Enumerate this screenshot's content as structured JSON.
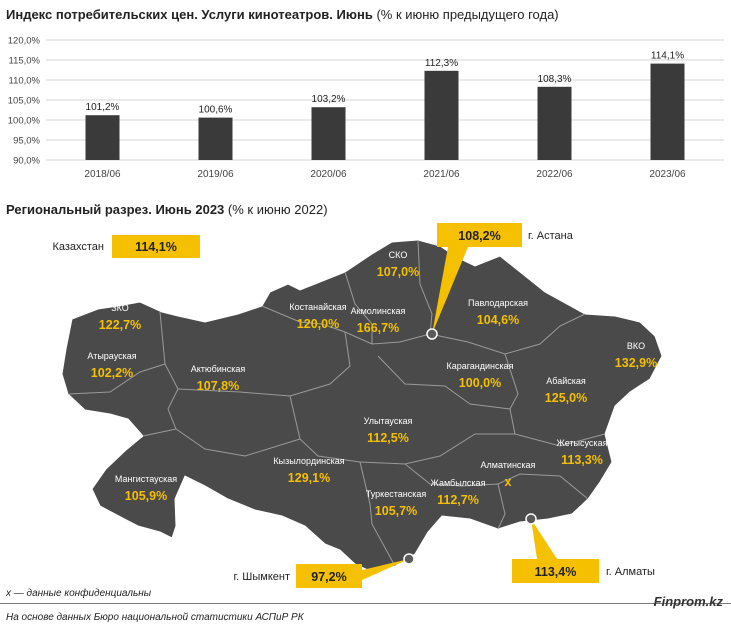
{
  "chart1": {
    "title_bold": "Индекс потребительских цен. Услуги кинотеатров. Июнь",
    "title_rest": "(% к июню предыдущего года)"
  },
  "chart_data": {
    "type": "bar",
    "categories": [
      "2018/06",
      "2019/06",
      "2020/06",
      "2021/06",
      "2022/06",
      "2023/06"
    ],
    "values": [
      101.2,
      100.6,
      103.2,
      112.3,
      108.3,
      114.1
    ],
    "value_labels": [
      "101,2%",
      "100,6%",
      "103,2%",
      "112,3%",
      "108,3%",
      "114,1%"
    ],
    "title": "Индекс потребительских цен. Услуги кинотеатров. Июнь (% к июню предыдущего года)",
    "ylim": [
      90,
      120
    ],
    "yticks": [
      "90,0%",
      "95,0%",
      "100,0%",
      "105,0%",
      "110,0%",
      "115,0%",
      "120,0%"
    ],
    "grid": true,
    "colors": {
      "bar": "#3a3a3a"
    }
  },
  "map": {
    "title_bold": "Региональный разрез. Июнь 2023",
    "title_rest": "(% к июню 2022)",
    "kazakhstan": {
      "label": "Казахстан",
      "value": "114,1%"
    },
    "cities": [
      {
        "label": "г. Астана",
        "value": "108,2%"
      },
      {
        "label": "г. Шымкент",
        "value": "97,2%"
      },
      {
        "label": "г. Алматы",
        "value": "113,4%"
      }
    ],
    "regions": [
      {
        "name": "ЗКО",
        "value": "122,7%"
      },
      {
        "name": "Атырауская",
        "value": "102,2%"
      },
      {
        "name": "Актюбинская",
        "value": "107,8%"
      },
      {
        "name": "Костанайская",
        "value": "120,0%"
      },
      {
        "name": "СКО",
        "value": "107,0%"
      },
      {
        "name": "Акмолинская",
        "value": "166,7%"
      },
      {
        "name": "Павлодарская",
        "value": "104,6%"
      },
      {
        "name": "ВКО",
        "value": "132,9%"
      },
      {
        "name": "Карагандинская",
        "value": "100,0%"
      },
      {
        "name": "Абайская",
        "value": "125,0%"
      },
      {
        "name": "Улытауская",
        "value": "112,5%"
      },
      {
        "name": "Жетысуская",
        "value": "113,3%"
      },
      {
        "name": "Алматинская",
        "value": "x"
      },
      {
        "name": "Мангистауская",
        "value": "105,9%"
      },
      {
        "name": "Кызылординская",
        "value": "129,1%"
      },
      {
        "name": "Туркестанская",
        "value": "105,7%"
      },
      {
        "name": "Жамбылская",
        "value": "112,7%"
      }
    ],
    "colors": {
      "territory": "#4a4a4a",
      "border": "#9a9a9a",
      "value": "#f5c000",
      "name": "#ffffff",
      "box": "#f5c000"
    }
  },
  "footer": {
    "footnote": "x — данные конфиденциальны",
    "source": "На основе данных Бюро национальной статистики АСПиР РК",
    "brand": "Finprom.kz"
  }
}
